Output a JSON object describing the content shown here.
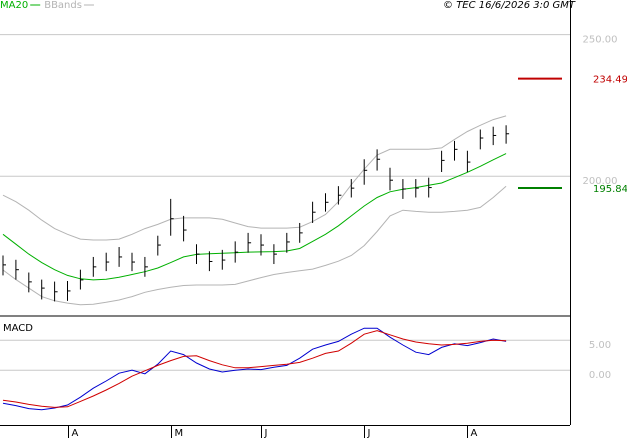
{
  "header": {
    "copyright": "© TEC 16/6/2026 3:0 GMT"
  },
  "chart_data": [
    {
      "type": "ohlc",
      "categories": [
        null,
        null,
        null,
        null,
        null,
        "A",
        null,
        null,
        null,
        null,
        null,
        null,
        null,
        "M",
        null,
        null,
        null,
        null,
        null,
        null,
        "J",
        null,
        null,
        null,
        null,
        null,
        null,
        null,
        "J",
        null,
        null,
        null,
        null,
        null,
        null,
        null,
        "A",
        null,
        null,
        null
      ],
      "high": [
        172,
        170.5,
        166,
        163.5,
        162.8,
        163,
        167,
        171.5,
        173,
        175,
        173,
        171.5,
        179,
        192,
        186,
        176,
        173.5,
        174,
        177,
        180,
        179.5,
        176,
        180,
        183.5,
        191,
        194,
        196.5,
        199,
        206,
        209.5,
        203,
        199,
        199,
        199.5,
        209,
        212.5,
        209,
        216.5,
        217.5,
        218
      ],
      "low": [
        165,
        163.5,
        159,
        156.5,
        155.8,
        156,
        160,
        164.5,
        166.5,
        168,
        166.5,
        164.5,
        172,
        179,
        177,
        169,
        166.5,
        167,
        169.5,
        173,
        172,
        169,
        173,
        176.5,
        183.5,
        187.5,
        190,
        192.5,
        197,
        202,
        195,
        192,
        192.5,
        192.5,
        201.5,
        205.5,
        201.5,
        209.5,
        211,
        211.5
      ],
      "close": [
        168.7,
        167,
        162.7,
        160.5,
        159.2,
        159.5,
        163.4,
        168,
        169.7,
        171.5,
        169.7,
        168,
        175.7,
        185,
        181,
        172.5,
        169.9,
        170.4,
        173.2,
        176.5,
        175.7,
        172.5,
        176.8,
        180,
        187.3,
        190.8,
        193.3,
        195.8,
        202.1,
        206,
        198.6,
        195.5,
        195.8,
        196,
        205.6,
        209.5,
        205,
        213.5,
        214.4,
        215
      ],
      "color": "#000000",
      "series": [
        {
          "name": "MA20",
          "color": "#00b000",
          "values": [
            179.5,
            176,
            172.5,
            169.5,
            167,
            165,
            163.8,
            163.4,
            163.6,
            164.3,
            165.3,
            166.3,
            167.6,
            169.5,
            171.5,
            172.4,
            172.6,
            172.8,
            173,
            173.2,
            173.3,
            173.4,
            173.6,
            174.5,
            177,
            179.5,
            182.5,
            186,
            189.5,
            192.5,
            194.5,
            195.4,
            196,
            196.8,
            197.6,
            199.5,
            201.4,
            203.5,
            205.8,
            208
          ]
        },
        {
          "name": "BBands",
          "color": "#b4b4b4",
          "upper": [
            193.3,
            191,
            188,
            184.5,
            181.5,
            179.5,
            177.8,
            177.5,
            177.5,
            177.8,
            179.5,
            181.5,
            183,
            184.8,
            185.3,
            185.3,
            185.3,
            184.8,
            183.5,
            182.2,
            181.7,
            181.7,
            181.7,
            182,
            184,
            186.5,
            191,
            197,
            202.5,
            207.5,
            209.5,
            209.5,
            209.5,
            209.5,
            210,
            213,
            215.8,
            218,
            220,
            221.3
          ],
          "lower": [
            166.9,
            163.5,
            160.5,
            157.5,
            156,
            155.2,
            154.6,
            154.8,
            155.5,
            156.3,
            157.5,
            159,
            160,
            160.8,
            161.4,
            161.6,
            161.6,
            161.6,
            161.8,
            163,
            164.2,
            165.3,
            166,
            166.6,
            167.2,
            168.5,
            170,
            172,
            175.5,
            180.5,
            186,
            188,
            187.6,
            187.3,
            187.3,
            187.6,
            188,
            189,
            192.5,
            196.5
          ]
        }
      ],
      "levels": [
        {
          "value": 234.49,
          "color": "#c00000"
        },
        {
          "value": 195.84,
          "color": "#008000"
        }
      ],
      "ylim": [
        151,
        258
      ],
      "yticks": [
        {
          "value": 250,
          "label": "250.00"
        },
        {
          "value": 200,
          "label": "200.00"
        }
      ],
      "grid": true
    },
    {
      "type": "line",
      "title": "MACD",
      "series": [
        {
          "color": "#0000d0",
          "values": [
            -5.5,
            -5.9,
            -6.4,
            -6.6,
            -6.3,
            -5.8,
            -4.5,
            -3,
            -1.8,
            -0.5,
            0,
            -0.6,
            1,
            3.2,
            2.6,
            1.2,
            0.2,
            -0.3,
            0,
            0.2,
            0.1,
            0.5,
            0.8,
            2,
            3.5,
            4.2,
            4.8,
            6,
            7,
            7,
            5.5,
            4.2,
            3,
            2.6,
            3.8,
            4.4,
            4.1,
            4.6,
            5.2,
            4.8
          ]
        },
        {
          "color": "#d00000",
          "values": [
            -5,
            -5.3,
            -5.7,
            -6,
            -6.2,
            -6.1,
            -5.2,
            -4.3,
            -3.3,
            -2.2,
            -1,
            -0.1,
            0.8,
            1.6,
            2.3,
            2.4,
            1.6,
            0.9,
            0.4,
            0.4,
            0.6,
            0.8,
            1,
            1.3,
            2,
            2.8,
            3.2,
            4.5,
            6,
            6.6,
            5.9,
            5.2,
            4.7,
            4.4,
            4.2,
            4.3,
            4.5,
            4.8,
            5,
            4.9
          ]
        }
      ],
      "ylim": [
        -8.3,
        8.7
      ],
      "yticks": [
        {
          "value": 5,
          "label": "5.00"
        },
        {
          "value": 0,
          "label": "0.00"
        }
      ],
      "grid": true
    }
  ]
}
